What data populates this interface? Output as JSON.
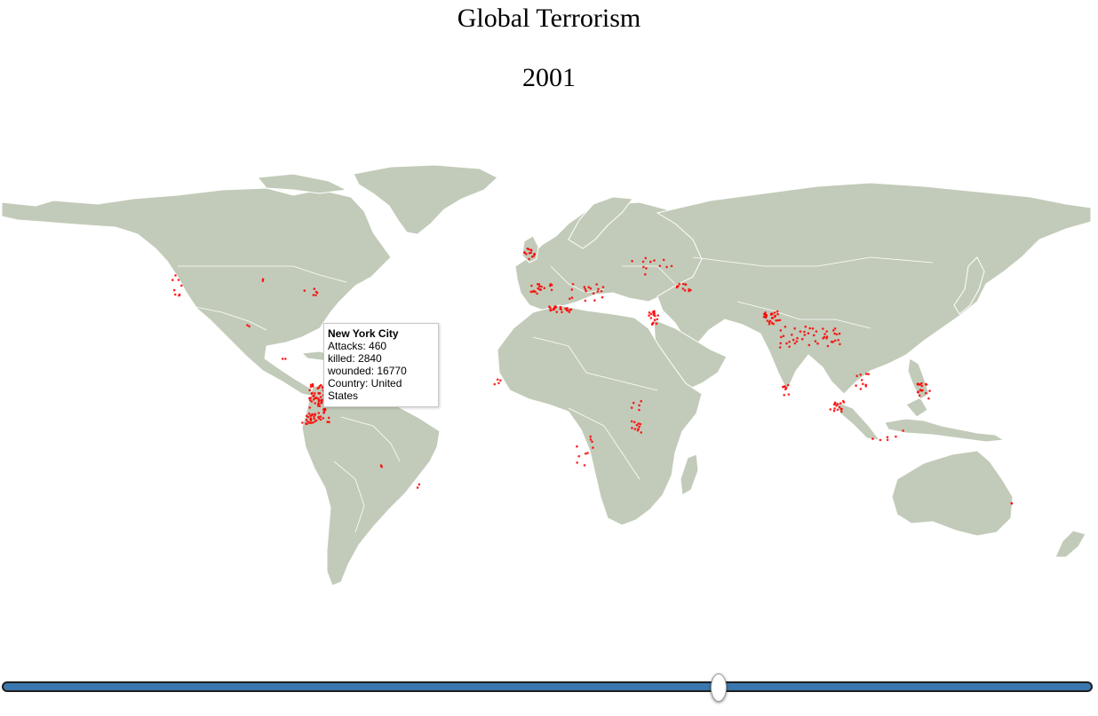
{
  "title": "Global Terrorism",
  "year": "2001",
  "tooltip": {
    "city": "New York City",
    "attacks": "Attacks: 460",
    "killed": "killed: 2840",
    "wounded": "wounded: 16770",
    "country": "Country: United States"
  },
  "slider": {
    "value": 2001
  },
  "colors": {
    "land": "#c2cbb9",
    "borders": "#ffffff",
    "attack_points": "#ff0000",
    "slider_track": "#3a77ae"
  }
}
